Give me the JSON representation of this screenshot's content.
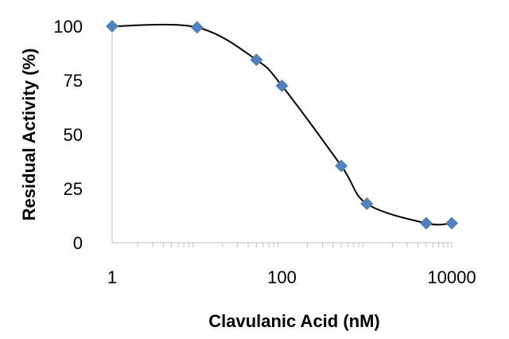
{
  "chart_data": {
    "type": "scatter",
    "title": "",
    "xlabel": "Clavulanic Acid (nM)",
    "ylabel": "Residual Activity (%)",
    "x_scale": "log",
    "xlim": [
      1,
      10000
    ],
    "ylim": [
      0,
      100
    ],
    "x_ticks": [
      {
        "value": 1,
        "label": "1"
      },
      {
        "value": 100,
        "label": "100"
      },
      {
        "value": 10000,
        "label": "10000"
      }
    ],
    "y_ticks": [
      {
        "value": 0,
        "label": "0"
      },
      {
        "value": 25,
        "label": "25"
      },
      {
        "value": 50,
        "label": "50"
      },
      {
        "value": 75,
        "label": "75"
      },
      {
        "value": 100,
        "label": "100"
      }
    ],
    "grid": false,
    "legend": "none",
    "series": [
      {
        "marker": "diamond",
        "color": "#4f81bd",
        "line_color": "#000000",
        "smooth_line": true,
        "points": [
          {
            "x": 1,
            "y": 100
          },
          {
            "x": 10,
            "y": 99.5
          },
          {
            "x": 50,
            "y": 84.5
          },
          {
            "x": 100,
            "y": 72.5
          },
          {
            "x": 500,
            "y": 35.5
          },
          {
            "x": 1000,
            "y": 18
          },
          {
            "x": 5000,
            "y": 9
          },
          {
            "x": 10000,
            "y": 9
          }
        ]
      }
    ]
  }
}
